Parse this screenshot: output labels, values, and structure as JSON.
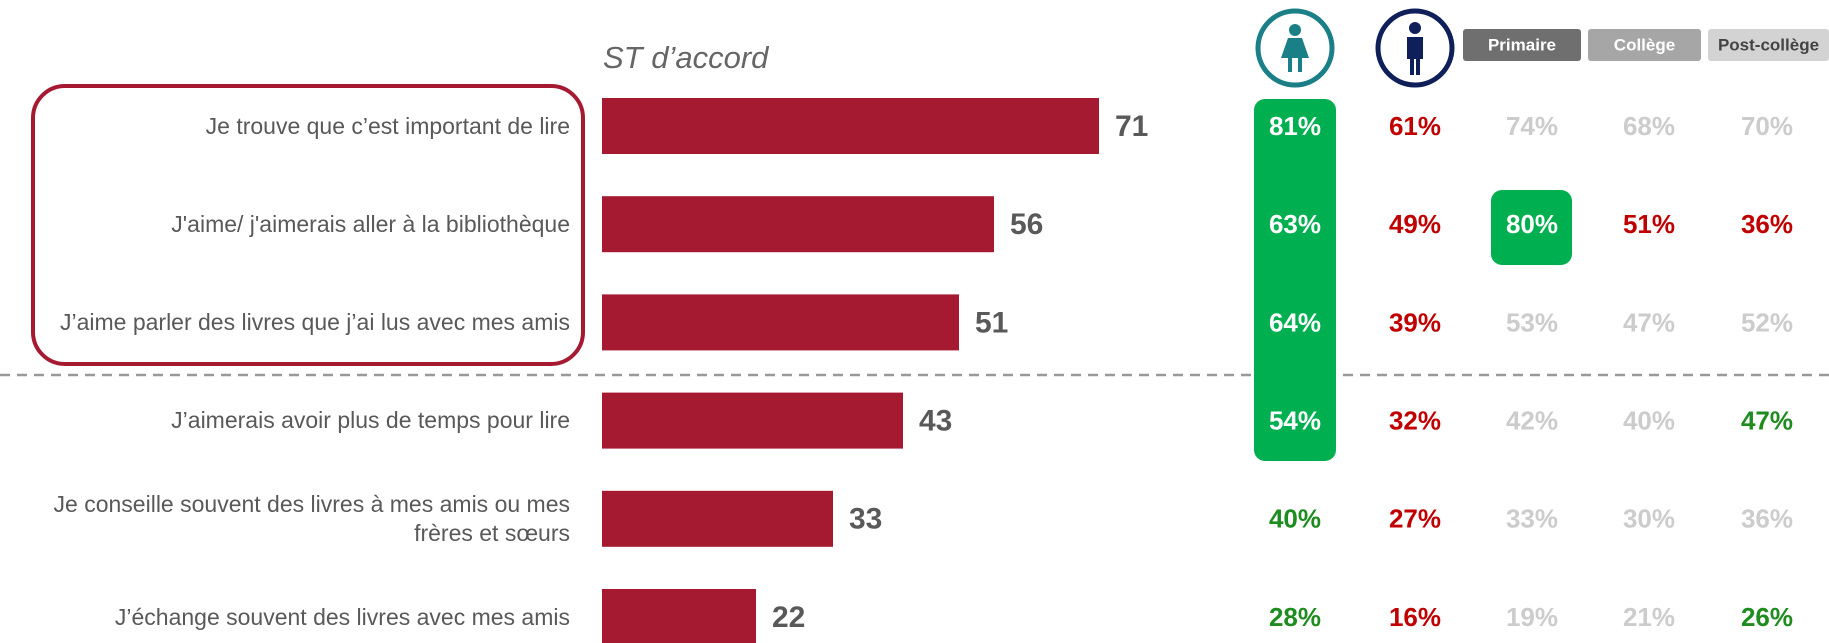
{
  "chart_data": {
    "type": "bar",
    "orientation": "horizontal",
    "title": "ST d’accord",
    "categories": [
      "Je trouve que c’est important de lire",
      "J'aime/ j'aimerais aller à la bibliothèque",
      "J’aime parler des livres que j’ai lus avec mes amis",
      "J’aimerais avoir plus de temps pour lire",
      "Je conseille souvent des livres à mes amis ou mes frères et sœurs",
      "J’échange souvent des livres avec mes amis"
    ],
    "values": [
      71,
      56,
      51,
      43,
      33,
      22
    ],
    "color": "#a51931",
    "table": {
      "headers": [
        "Primaire",
        "Collège",
        "Post-collège"
      ],
      "header_colors": [
        "#6f6f6f",
        "#a6a6a6",
        "#d3d3d3"
      ],
      "rows": [
        [
          "81%",
          "61%",
          "74%",
          "68%",
          "70%"
        ],
        [
          "63%",
          "49%",
          "80%",
          "51%",
          "36%"
        ],
        [
          "64%",
          "39%",
          "53%",
          "47%",
          "52%"
        ],
        [
          "54%",
          "32%",
          "42%",
          "40%",
          "47%"
        ],
        [
          "40%",
          "27%",
          "33%",
          "30%",
          "36%"
        ],
        [
          "28%",
          "16%",
          "19%",
          "21%",
          "26%"
        ]
      ],
      "colors": [
        [
          "#ffffff",
          "#c00000",
          "#cccccc",
          "#cccccc",
          "#cccccc"
        ],
        [
          "#ffffff",
          "#c00000",
          "#ffffff",
          "#c00000",
          "#c00000"
        ],
        [
          "#ffffff",
          "#c00000",
          "#cccccc",
          "#cccccc",
          "#cccccc"
        ],
        [
          "#ffffff",
          "#c00000",
          "#cccccc",
          "#cccccc",
          "#1e8c1e"
        ],
        [
          "#1e8c1e",
          "#c00000",
          "#cccccc",
          "#cccccc",
          "#cccccc"
        ],
        [
          "#1e8c1e",
          "#c00000",
          "#cccccc",
          "#cccccc",
          "#1e8c1e"
        ]
      ]
    }
  }
}
